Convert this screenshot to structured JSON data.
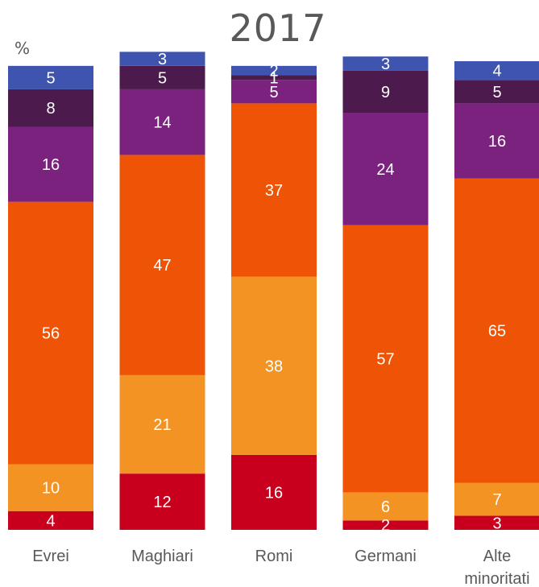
{
  "chart_data": {
    "type": "bar",
    "stacked": true,
    "percent": true,
    "title": "2017",
    "unit_label": "%",
    "categories": [
      "Evrei",
      "Maghiari",
      "Romi",
      "Germani",
      [
        "Alte",
        "minoritati"
      ]
    ],
    "series": [
      {
        "color": "#C8001E",
        "values": [
          4,
          12,
          16,
          2,
          3
        ]
      },
      {
        "color": "#F39323",
        "values": [
          10,
          21,
          38,
          6,
          7
        ]
      },
      {
        "color": "#EF5406",
        "values": [
          56,
          47,
          37,
          57,
          65
        ]
      },
      {
        "color": "#7A227E",
        "values": [
          16,
          14,
          5,
          24,
          16
        ]
      },
      {
        "color": "#4C1A4C",
        "values": [
          8,
          5,
          1,
          9,
          5
        ]
      },
      {
        "color": "#3E54AE",
        "values": [
          5,
          3,
          2,
          3,
          4
        ]
      }
    ],
    "ylim": [
      0,
      100
    ],
    "grid": false,
    "legend": "none"
  }
}
